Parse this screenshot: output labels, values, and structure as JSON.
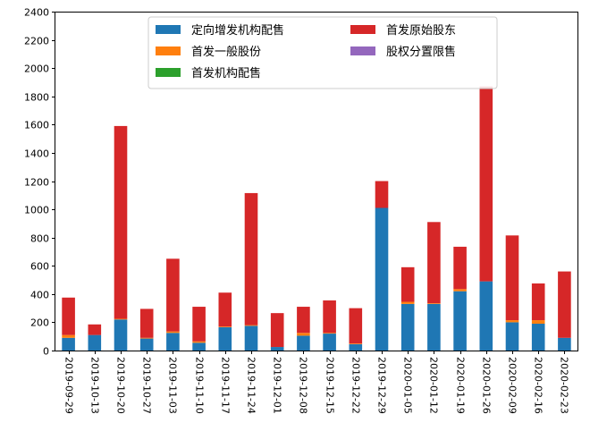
{
  "chart_data": {
    "type": "bar",
    "stacked": true,
    "title": "",
    "xlabel": "",
    "ylabel": "",
    "ylim": [
      0,
      2400
    ],
    "yticks": [
      0,
      200,
      400,
      600,
      800,
      1000,
      1200,
      1400,
      1600,
      1800,
      2000,
      2200,
      2400
    ],
    "grid": false,
    "legend_position": "top-center",
    "categories": [
      "2019-09-29",
      "2019-10-13",
      "2019-10-20",
      "2019-10-27",
      "2019-11-03",
      "2019-11-10",
      "2019-11-17",
      "2019-11-24",
      "2019-12-01",
      "2019-12-08",
      "2019-12-15",
      "2019-12-22",
      "2019-12-29",
      "2020-01-05",
      "2020-01-12",
      "2020-01-19",
      "2020-01-26",
      "2020-02-09",
      "2020-02-16",
      "2020-02-23"
    ],
    "series": [
      {
        "name": "定向增发机构配售",
        "color": "#1f77b4",
        "values": [
          90,
          110,
          220,
          85,
          125,
          55,
          165,
          175,
          25,
          105,
          120,
          45,
          1010,
          330,
          330,
          420,
          490,
          200,
          190,
          90
        ]
      },
      {
        "name": "首发一般股份",
        "color": "#ff7f0e",
        "values": [
          20,
          0,
          5,
          5,
          10,
          10,
          5,
          5,
          0,
          20,
          5,
          5,
          0,
          15,
          5,
          15,
          0,
          15,
          25,
          0
        ]
      },
      {
        "name": "首发机构配售",
        "color": "#2ca02c",
        "values": [
          0,
          0,
          0,
          0,
          0,
          0,
          0,
          0,
          0,
          0,
          0,
          0,
          0,
          0,
          0,
          0,
          0,
          0,
          0,
          0
        ]
      },
      {
        "name": "首发原始股东",
        "color": "#d62728",
        "values": [
          265,
          75,
          1365,
          205,
          515,
          245,
          240,
          935,
          240,
          185,
          230,
          250,
          190,
          245,
          575,
          300,
          1380,
          600,
          260,
          470
        ]
      },
      {
        "name": "股权分置限售",
        "color": "#9467bd",
        "values": [
          0,
          0,
          0,
          0,
          0,
          0,
          0,
          0,
          0,
          0,
          0,
          0,
          0,
          0,
          0,
          0,
          0,
          0,
          0,
          0
        ]
      }
    ]
  }
}
